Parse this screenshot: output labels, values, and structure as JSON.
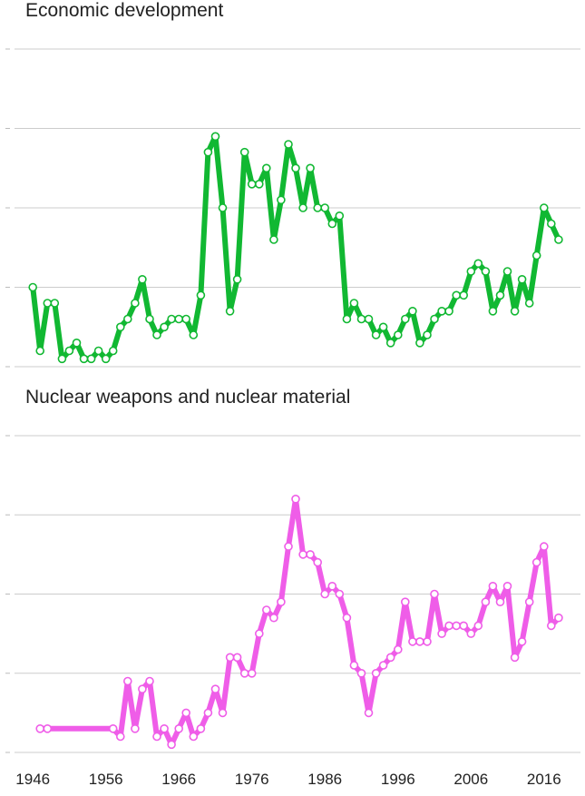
{
  "chart_data": [
    {
      "type": "line",
      "title": "Economic development",
      "xlabel": "",
      "ylabel": "",
      "xlim": [
        1943,
        2020
      ],
      "ylim": [
        0,
        40
      ],
      "yticks": [
        0,
        10,
        20,
        30,
        40
      ],
      "grid": true,
      "legend": "none",
      "color": "#11b832",
      "x": [
        1946,
        1947,
        1948,
        1949,
        1950,
        1951,
        1952,
        1953,
        1954,
        1955,
        1956,
        1957,
        1958,
        1959,
        1960,
        1961,
        1962,
        1963,
        1964,
        1965,
        1966,
        1967,
        1968,
        1969,
        1970,
        1971,
        1972,
        1973,
        1974,
        1975,
        1976,
        1977,
        1978,
        1979,
        1980,
        1981,
        1982,
        1983,
        1984,
        1985,
        1986,
        1987,
        1988,
        1989,
        1990,
        1991,
        1992,
        1993,
        1994,
        1995,
        1996,
        1997,
        1998,
        1999,
        2000,
        2001,
        2002,
        2003,
        2004,
        2005,
        2006,
        2007,
        2008,
        2009,
        2010,
        2011,
        2012,
        2013,
        2014,
        2015,
        2016,
        2017,
        2018
      ],
      "values": [
        10,
        2,
        8,
        8,
        1,
        2,
        3,
        1,
        1,
        2,
        1,
        2,
        5,
        6,
        8,
        11,
        6,
        4,
        5,
        6,
        6,
        6,
        4,
        9,
        27,
        29,
        20,
        7,
        11,
        27,
        23,
        23,
        25,
        16,
        21,
        28,
        25,
        20,
        25,
        20,
        20,
        18,
        19,
        6,
        8,
        6,
        6,
        4,
        5,
        3,
        4,
        6,
        7,
        3,
        4,
        6,
        7,
        7,
        9,
        9,
        12,
        13,
        12,
        7,
        9,
        12,
        7,
        11,
        8,
        14,
        20,
        18,
        16
      ]
    },
    {
      "type": "line",
      "title": "Nuclear weapons and nuclear material",
      "xlabel": "",
      "ylabel": "",
      "xlim": [
        1943,
        2020
      ],
      "ylim": [
        0,
        40
      ],
      "yticks": [
        0,
        10,
        20,
        30,
        40
      ],
      "xticks": [
        1946,
        1956,
        1966,
        1976,
        1986,
        1996,
        2006,
        2016
      ],
      "grid": true,
      "legend": "none",
      "color": "#ef5de8",
      "x": [
        1947,
        1948,
        1957,
        1958,
        1959,
        1960,
        1961,
        1962,
        1963,
        1964,
        1965,
        1966,
        1967,
        1968,
        1969,
        1970,
        1971,
        1972,
        1973,
        1974,
        1975,
        1976,
        1977,
        1978,
        1979,
        1980,
        1981,
        1982,
        1983,
        1984,
        1985,
        1986,
        1987,
        1988,
        1989,
        1990,
        1991,
        1992,
        1993,
        1994,
        1995,
        1996,
        1997,
        1998,
        1999,
        2000,
        2001,
        2002,
        2003,
        2004,
        2005,
        2006,
        2007,
        2008,
        2009,
        2010,
        2011,
        2012,
        2013,
        2014,
        2015,
        2016,
        2017,
        2018
      ],
      "values": [
        3,
        3,
        3,
        2,
        9,
        3,
        8,
        9,
        2,
        3,
        1,
        3,
        5,
        2,
        3,
        5,
        8,
        5,
        12,
        12,
        10,
        10,
        15,
        18,
        17,
        19,
        26,
        32,
        25,
        25,
        24,
        20,
        21,
        20,
        17,
        11,
        10,
        5,
        10,
        11,
        12,
        13,
        19,
        14,
        14,
        14,
        20,
        15,
        16,
        16,
        16,
        15,
        16,
        19,
        21,
        19,
        21,
        12,
        14,
        19,
        24,
        26,
        16,
        17
      ]
    }
  ]
}
